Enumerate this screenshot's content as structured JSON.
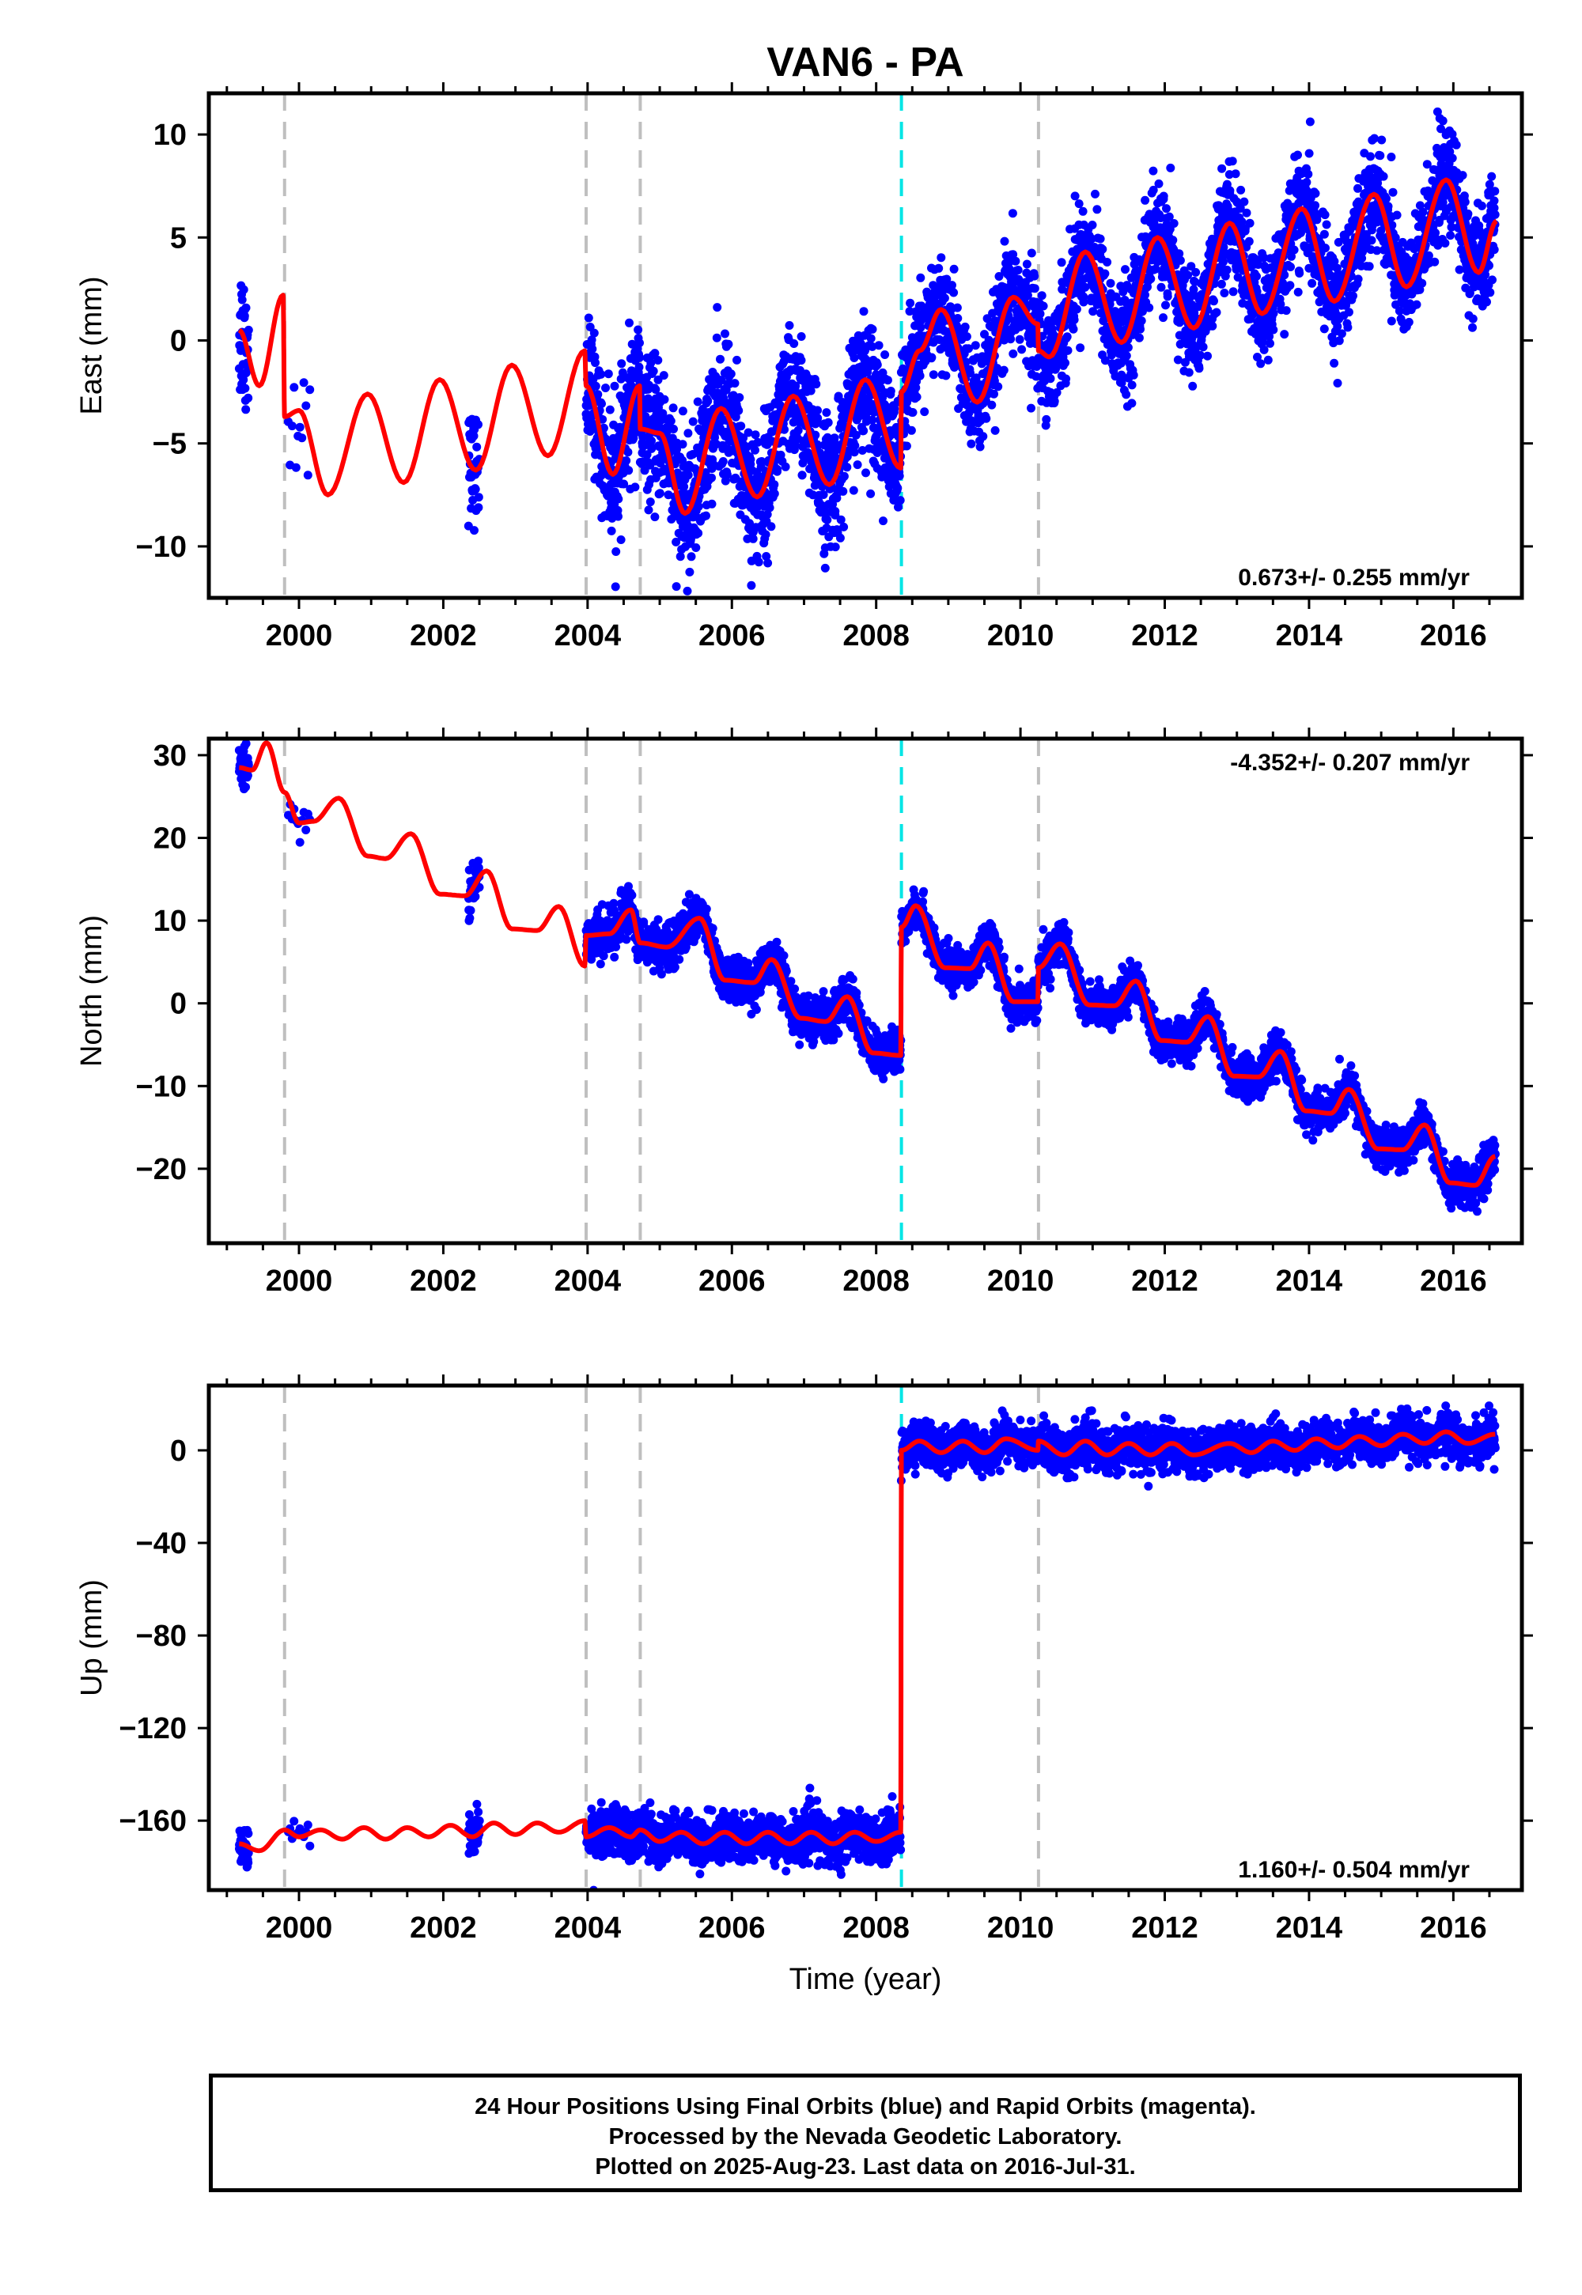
{
  "title": "VAN6 - PA",
  "colors": {
    "points": "#0000ff",
    "model": "#ff0000",
    "steps": "#bfbfbf",
    "equipment_step": "#00e5e5"
  },
  "caption": {
    "line1": "24 Hour Positions Using Final Orbits (blue) and Rapid Orbits (magenta).",
    "line2": "Processed by the Nevada Geodetic Laboratory.",
    "line3": "Plotted on 2025-Aug-23. Last data on 2016-Jul-31."
  },
  "chart_data": [
    {
      "type": "scatter",
      "component": "east",
      "ylabel": "East (mm)",
      "xlabel": "",
      "xlim": [
        1998.75,
        2016.95
      ],
      "ylim": [
        -12.5,
        12
      ],
      "xticks": [
        2000,
        2002,
        2004,
        2006,
        2008,
        2010,
        2012,
        2014,
        2016
      ],
      "yticks": [
        -10,
        -5,
        0,
        5,
        10
      ],
      "rate": "0.673+/- 0.255 mm/yr",
      "rate_position": "bottom-right",
      "gray_steps": [
        1999.8,
        2003.98,
        2004.73,
        2010.25
      ],
      "cyan_steps": [
        2008.35
      ],
      "model": [
        [
          1999.17,
          0.5
        ],
        [
          1999.45,
          -2.2
        ],
        [
          1999.78,
          2.2
        ],
        [
          1999.8,
          -3.7
        ],
        [
          2000.0,
          -3.4
        ],
        [
          2000.4,
          -7.5
        ],
        [
          2000.95,
          -2.6
        ],
        [
          2001.45,
          -6.9
        ],
        [
          2001.95,
          -1.9
        ],
        [
          2002.45,
          -6.3
        ],
        [
          2002.95,
          -1.2
        ],
        [
          2003.45,
          -5.6
        ],
        [
          2003.96,
          -0.5
        ],
        [
          2003.98,
          -2.2
        ],
        [
          2004.35,
          -6.5
        ],
        [
          2004.72,
          -2.2
        ],
        [
          2004.73,
          -4.3
        ],
        [
          2005.0,
          -4.5
        ],
        [
          2005.35,
          -8.4
        ],
        [
          2005.85,
          -3.3
        ],
        [
          2006.35,
          -7.6
        ],
        [
          2006.85,
          -2.7
        ],
        [
          2007.35,
          -7.0
        ],
        [
          2007.85,
          -1.9
        ],
        [
          2008.34,
          -6.2
        ],
        [
          2008.35,
          -2.5
        ],
        [
          2008.6,
          -0.5
        ],
        [
          2008.9,
          1.5
        ],
        [
          2009.4,
          -3.0
        ],
        [
          2009.9,
          2.1
        ],
        [
          2010.24,
          0.8
        ],
        [
          2010.25,
          -0.5
        ],
        [
          2010.4,
          -0.8
        ],
        [
          2010.9,
          4.3
        ],
        [
          2011.4,
          -0.1
        ],
        [
          2011.9,
          5.0
        ],
        [
          2012.4,
          0.6
        ],
        [
          2012.9,
          5.7
        ],
        [
          2013.35,
          1.3
        ],
        [
          2013.9,
          6.4
        ],
        [
          2014.35,
          1.9
        ],
        [
          2014.9,
          7.1
        ],
        [
          2015.35,
          2.6
        ],
        [
          2015.9,
          7.8
        ],
        [
          2016.35,
          3.3
        ],
        [
          2016.6,
          5.8
        ]
      ],
      "data_spans": [
        {
          "start": 1999.17,
          "end": 1999.3,
          "n": 40,
          "noise": 1.8
        },
        {
          "start": 1999.85,
          "end": 2000.15,
          "n": 12,
          "noise": 1.5
        },
        {
          "start": 2002.35,
          "end": 2002.5,
          "n": 40,
          "noise": 1.3
        },
        {
          "start": 2003.98,
          "end": 2008.34,
          "n": 1500,
          "noise": 1.6
        },
        {
          "start": 2008.35,
          "end": 2016.58,
          "n": 2700,
          "noise": 1.3
        }
      ]
    },
    {
      "type": "scatter",
      "component": "north",
      "ylabel": "North (mm)",
      "xlabel": "",
      "xlim": [
        1998.75,
        2016.95
      ],
      "ylim": [
        -29,
        32
      ],
      "xticks": [
        2000,
        2002,
        2004,
        2006,
        2008,
        2010,
        2012,
        2014,
        2016
      ],
      "yticks": [
        -20,
        -10,
        0,
        10,
        20,
        30
      ],
      "rate": "-4.352+/- 0.207 mm/yr",
      "rate_position": "top-right",
      "gray_steps": [
        1999.8,
        2003.98,
        2004.73,
        2010.25
      ],
      "cyan_steps": [
        2008.35
      ],
      "model": [
        [
          1999.17,
          28.5
        ],
        [
          1999.35,
          28.2
        ],
        [
          1999.55,
          31.5
        ],
        [
          1999.8,
          25.5
        ],
        [
          2000.0,
          21.8
        ],
        [
          2000.2,
          22.0
        ],
        [
          2000.55,
          24.8
        ],
        [
          2000.95,
          17.8
        ],
        [
          2001.2,
          17.5
        ],
        [
          2001.55,
          20.5
        ],
        [
          2001.95,
          13.2
        ],
        [
          2002.3,
          13.0
        ],
        [
          2002.6,
          16.0
        ],
        [
          2002.95,
          9.0
        ],
        [
          2003.3,
          8.8
        ],
        [
          2003.6,
          11.7
        ],
        [
          2003.96,
          4.5
        ],
        [
          2003.98,
          8.2
        ],
        [
          2004.3,
          8.4
        ],
        [
          2004.6,
          11.3
        ],
        [
          2004.73,
          7.3
        ],
        [
          2005.1,
          6.8
        ],
        [
          2005.55,
          10.3
        ],
        [
          2005.9,
          2.8
        ],
        [
          2006.3,
          2.5
        ],
        [
          2006.55,
          5.3
        ],
        [
          2006.95,
          -1.8
        ],
        [
          2007.3,
          -2.2
        ],
        [
          2007.6,
          0.8
        ],
        [
          2007.95,
          -6.0
        ],
        [
          2008.34,
          -6.3
        ],
        [
          2008.35,
          9.2
        ],
        [
          2008.55,
          11.8
        ],
        [
          2008.95,
          4.3
        ],
        [
          2009.3,
          4.2
        ],
        [
          2009.55,
          7.3
        ],
        [
          2009.9,
          0.2
        ],
        [
          2010.24,
          0.2
        ],
        [
          2010.25,
          4.3
        ],
        [
          2010.55,
          7.2
        ],
        [
          2010.95,
          -0.2
        ],
        [
          2011.3,
          -0.3
        ],
        [
          2011.6,
          2.7
        ],
        [
          2011.95,
          -4.5
        ],
        [
          2012.3,
          -4.7
        ],
        [
          2012.6,
          -1.6
        ],
        [
          2012.95,
          -8.8
        ],
        [
          2013.3,
          -8.9
        ],
        [
          2013.6,
          -5.8
        ],
        [
          2013.95,
          -13.0
        ],
        [
          2014.3,
          -13.3
        ],
        [
          2014.55,
          -10.4
        ],
        [
          2014.95,
          -17.6
        ],
        [
          2015.3,
          -17.7
        ],
        [
          2015.6,
          -14.7
        ],
        [
          2015.95,
          -21.7
        ],
        [
          2016.3,
          -22.0
        ],
        [
          2016.58,
          -18.5
        ]
      ],
      "data_spans": [
        {
          "start": 1999.17,
          "end": 1999.3,
          "n": 40,
          "noise": 1.2
        },
        {
          "start": 1999.85,
          "end": 2000.15,
          "n": 12,
          "noise": 1.0
        },
        {
          "start": 2002.35,
          "end": 2002.5,
          "n": 40,
          "noise": 1.2
        },
        {
          "start": 2003.98,
          "end": 2008.34,
          "n": 1500,
          "noise": 1.3
        },
        {
          "start": 2008.35,
          "end": 2016.58,
          "n": 2700,
          "noise": 1.2
        }
      ]
    },
    {
      "type": "scatter",
      "component": "up",
      "ylabel": "Up (mm)",
      "xlabel": "Time (year)",
      "xlim": [
        1998.75,
        2016.95
      ],
      "ylim": [
        -190,
        28
      ],
      "xticks": [
        2000,
        2002,
        2004,
        2006,
        2008,
        2010,
        2012,
        2014,
        2016
      ],
      "yticks": [
        -160,
        -120,
        -80,
        -40,
        0
      ],
      "rate": "1.160+/- 0.504 mm/yr",
      "rate_position": "bottom-right",
      "gray_steps": [
        1999.8,
        2003.98,
        2004.73,
        2010.25
      ],
      "cyan_steps": [
        2008.35
      ],
      "model": [
        [
          1999.17,
          -170
        ],
        [
          1999.45,
          -173
        ],
        [
          1999.8,
          -164
        ],
        [
          2000.0,
          -167
        ],
        [
          2000.3,
          -164
        ],
        [
          2000.6,
          -168
        ],
        [
          2000.9,
          -163
        ],
        [
          2001.2,
          -168
        ],
        [
          2001.5,
          -163
        ],
        [
          2001.8,
          -167
        ],
        [
          2002.1,
          -162
        ],
        [
          2002.4,
          -167
        ],
        [
          2002.7,
          -161
        ],
        [
          2003.0,
          -166
        ],
        [
          2003.3,
          -161
        ],
        [
          2003.6,
          -165
        ],
        [
          2003.96,
          -160
        ],
        [
          2003.98,
          -167
        ],
        [
          2004.3,
          -163
        ],
        [
          2004.6,
          -167
        ],
        [
          2004.73,
          -164
        ],
        [
          2005.0,
          -169
        ],
        [
          2005.3,
          -165
        ],
        [
          2005.6,
          -170
        ],
        [
          2005.9,
          -165
        ],
        [
          2006.2,
          -170
        ],
        [
          2006.5,
          -165
        ],
        [
          2006.8,
          -170
        ],
        [
          2007.1,
          -165
        ],
        [
          2007.4,
          -170
        ],
        [
          2007.7,
          -165
        ],
        [
          2008.0,
          -169
        ],
        [
          2008.34,
          -165
        ],
        [
          2008.35,
          0
        ],
        [
          2008.6,
          4
        ],
        [
          2008.9,
          -1
        ],
        [
          2009.2,
          4
        ],
        [
          2009.5,
          -1
        ],
        [
          2009.8,
          5
        ],
        [
          2010.24,
          0
        ],
        [
          2010.25,
          4
        ],
        [
          2010.6,
          -2
        ],
        [
          2010.9,
          4
        ],
        [
          2011.2,
          -2
        ],
        [
          2011.5,
          3
        ],
        [
          2011.8,
          -2
        ],
        [
          2012.1,
          3
        ],
        [
          2012.4,
          -2
        ],
        [
          2012.9,
          3
        ],
        [
          2013.2,
          -1
        ],
        [
          2013.5,
          4
        ],
        [
          2013.8,
          0
        ],
        [
          2014.1,
          5
        ],
        [
          2014.4,
          1
        ],
        [
          2014.7,
          6
        ],
        [
          2015.0,
          2
        ],
        [
          2015.3,
          7
        ],
        [
          2015.6,
          3
        ],
        [
          2015.9,
          8
        ],
        [
          2016.2,
          3
        ],
        [
          2016.58,
          7
        ]
      ],
      "data_spans": [
        {
          "start": 1999.17,
          "end": 1999.3,
          "n": 40,
          "noise": 5
        },
        {
          "start": 1999.85,
          "end": 2000.15,
          "n": 12,
          "noise": 5
        },
        {
          "start": 2002.35,
          "end": 2002.5,
          "n": 40,
          "noise": 5
        },
        {
          "start": 2003.98,
          "end": 2008.34,
          "n": 1500,
          "noise": 5
        },
        {
          "start": 2008.35,
          "end": 2016.58,
          "n": 2700,
          "noise": 4.5
        }
      ]
    }
  ]
}
